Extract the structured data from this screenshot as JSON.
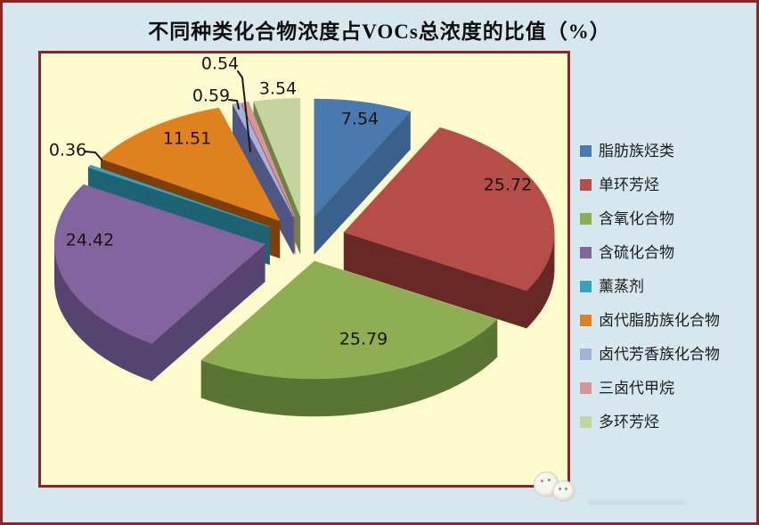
{
  "frame": {
    "border_color": "#8e2426",
    "background": "#d7e7f0"
  },
  "plot": {
    "background": "#fffbcf",
    "border_color": "#8e2426"
  },
  "chart_data": {
    "type": "pie",
    "style": "3d-exploded-pie",
    "title": "不同种类化合物浓度占VOCs总浓度的比值（%）",
    "values_unit": "%",
    "legend_position": "right",
    "start_angle_deg": 0,
    "clockwise": true,
    "grid": false,
    "series": [
      {
        "name": "脂肪族烃类",
        "value": 7.54,
        "color": "#4a79b0",
        "side_color": "#3a608c"
      },
      {
        "name": "单环芳烃",
        "value": 25.72,
        "color": "#b54d49",
        "side_color": "#682826"
      },
      {
        "name": "含氧化合物",
        "value": 25.79,
        "color": "#8fae53",
        "side_color": "#5a7434"
      },
      {
        "name": "含硫化合物",
        "value": 24.42,
        "color": "#82659f",
        "side_color": "#57436f"
      },
      {
        "name": "薰蒸剂",
        "value": 0.36,
        "color": "#3aa2b8",
        "side_color": "#1d6373"
      },
      {
        "name": "卤代脂肪族化合物",
        "value": 11.51,
        "color": "#e0811f",
        "side_color": "#7e3f0c"
      },
      {
        "name": "卤代芳香族化合物",
        "value": 0.59,
        "color": "#a8b0d8",
        "side_color": "#4e5784"
      },
      {
        "name": "三卤代甲烷",
        "value": 0.54,
        "color": "#d69693",
        "side_color": "#a05f5c"
      },
      {
        "name": "多环芳烃",
        "value": 3.54,
        "color": "#c5d49c",
        "side_color": "#6f8147"
      }
    ]
  },
  "watermark": {
    "description": "faint pale cartoon circles, bottom-right corner"
  }
}
